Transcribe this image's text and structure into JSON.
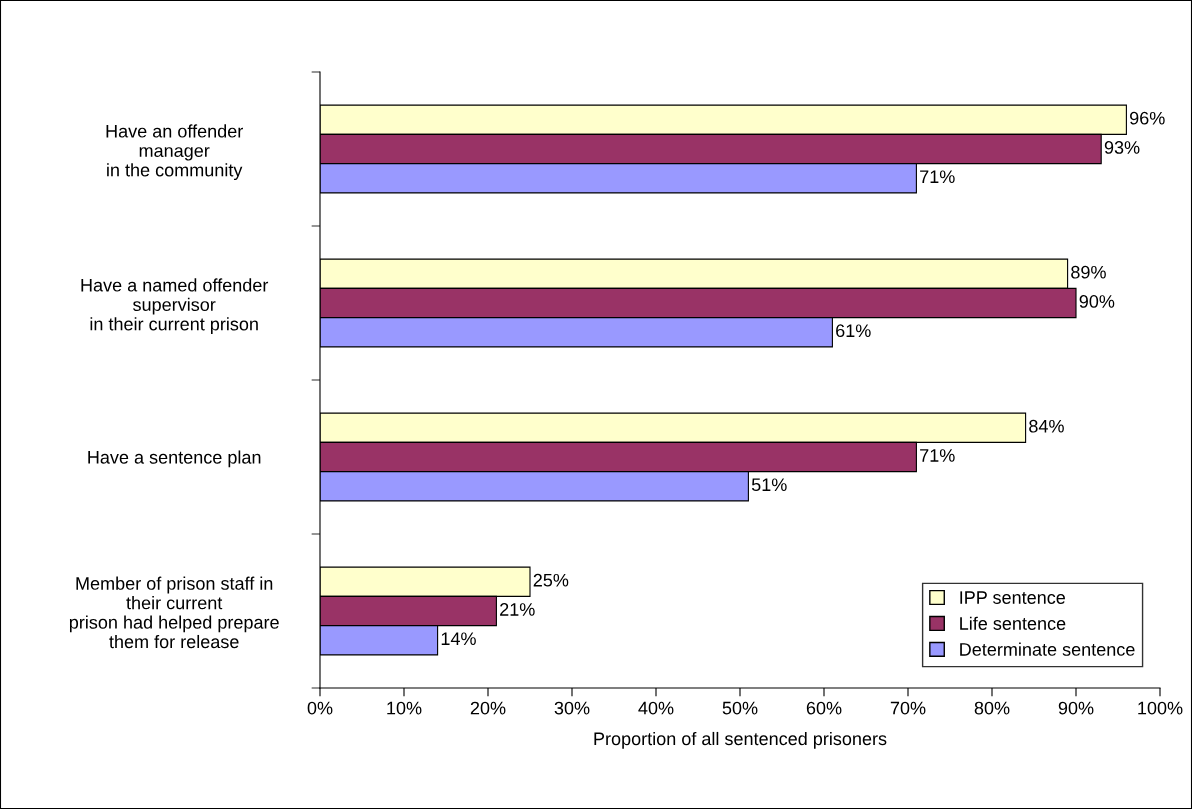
{
  "chart_data": {
    "type": "bar",
    "orientation": "horizontal",
    "xlabel": "Proportion of all sentenced prisoners",
    "categories": [
      "Have an offender\nmanager\nin the community",
      "Have a named offender\nsupervisor\nin their current prison",
      "Have a sentence plan",
      "Member of prison staff in\ntheir current\nprison had helped prepare\nthem for release"
    ],
    "series": [
      {
        "name": "IPP sentence",
        "color": "#ffffcc",
        "values": [
          96,
          89,
          84,
          25
        ],
        "value_labels": [
          "96%",
          "89%",
          "84%",
          "25%"
        ]
      },
      {
        "name": "Life sentence",
        "color": "#993366",
        "values": [
          93,
          90,
          71,
          21
        ],
        "value_labels": [
          "93%",
          "90%",
          "71%",
          "21%"
        ]
      },
      {
        "name": "Determinate sentence",
        "color": "#9999ff",
        "values": [
          71,
          61,
          51,
          14
        ],
        "value_labels": [
          "71%",
          "61%",
          "51%",
          "14%"
        ]
      }
    ],
    "xlim": [
      0,
      100
    ],
    "xticks": [
      {
        "value": 0,
        "label": "0%"
      },
      {
        "value": 10,
        "label": "10%"
      },
      {
        "value": 20,
        "label": "20%"
      },
      {
        "value": 30,
        "label": "30%"
      },
      {
        "value": 40,
        "label": "40%"
      },
      {
        "value": 50,
        "label": "50%"
      },
      {
        "value": 60,
        "label": "60%"
      },
      {
        "value": 70,
        "label": "70%"
      },
      {
        "value": 80,
        "label": "80%"
      },
      {
        "value": 90,
        "label": "90%"
      },
      {
        "value": 100,
        "label": "100%"
      }
    ],
    "grid": false,
    "legend": "bottom right"
  }
}
